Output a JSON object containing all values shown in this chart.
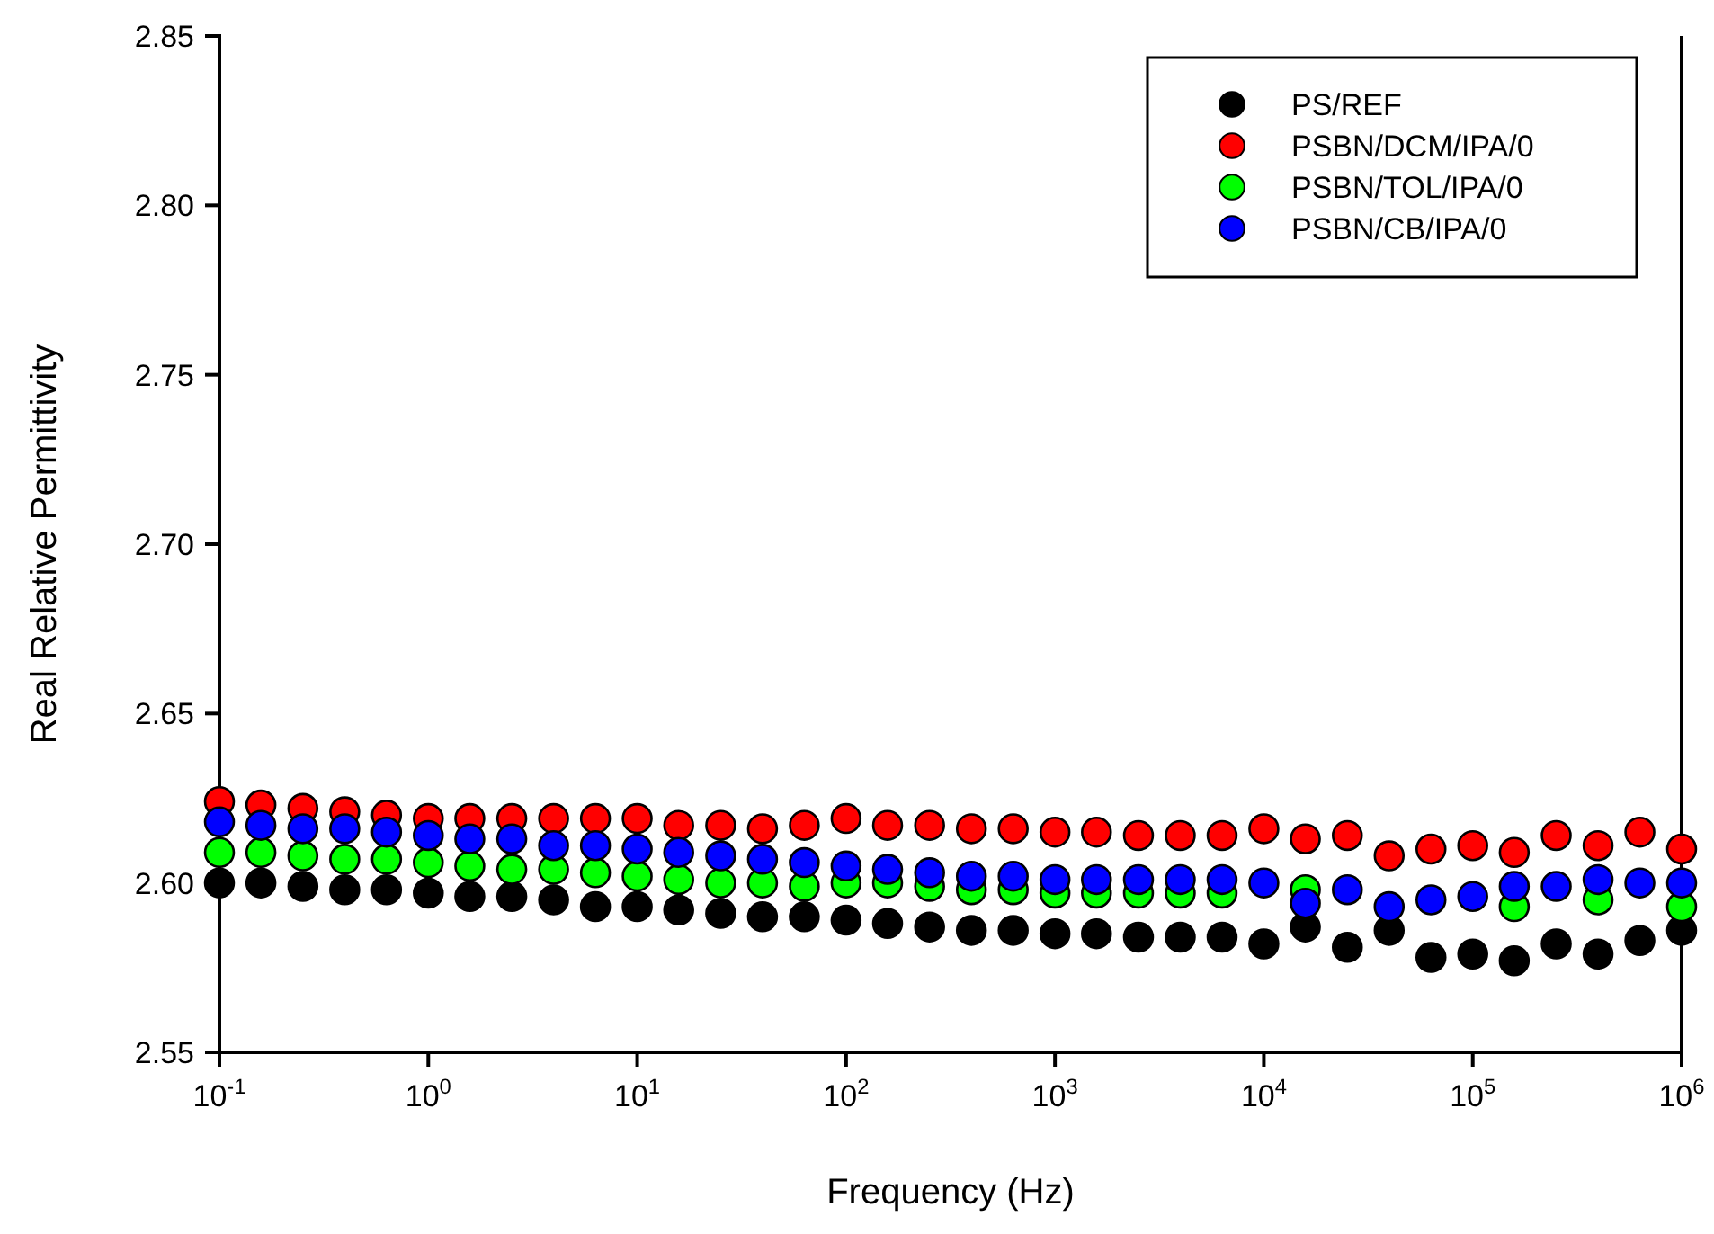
{
  "chart_data": {
    "type": "scatter",
    "xlabel": "Frequency (Hz)",
    "ylabel": "Real Relative Permittivity",
    "log": "x",
    "grid": false,
    "legend": "top right",
    "marker": "circle",
    "x": [
      0.1,
      0.158,
      0.251,
      0.398,
      0.631,
      1,
      1.58,
      2.51,
      3.98,
      6.31,
      10,
      15.8,
      25.1,
      39.8,
      63.1,
      100,
      158,
      251,
      398,
      631,
      1000,
      1580,
      2510,
      3980,
      6310,
      10000,
      15800,
      25100,
      39800,
      63100,
      100000,
      158000,
      251000,
      398000,
      631000,
      1000000
    ],
    "xlim": [
      0.1,
      1000000
    ],
    "xticks": [
      {
        "value": 0.1,
        "label": "10$^{-1}$"
      },
      {
        "value": 1,
        "label": "10$^{0}$"
      },
      {
        "value": 10,
        "label": "10$^{1}$"
      },
      {
        "value": 100,
        "label": "10$^{2}$"
      },
      {
        "value": 1000,
        "label": "10$^{3}$"
      },
      {
        "value": 10000,
        "label": "10$^{4}$"
      },
      {
        "value": 100000,
        "label": "10$^{5}$"
      },
      {
        "value": 1000000,
        "label": "10$^{6}$"
      }
    ],
    "ylim": [
      2.55,
      2.85
    ],
    "yticks": [
      {
        "value": 2.55,
        "label": "2.55"
      },
      {
        "value": 2.6,
        "label": "2.60"
      },
      {
        "value": 2.65,
        "label": "2.65"
      },
      {
        "value": 2.7,
        "label": "2.70"
      },
      {
        "value": 2.75,
        "label": "2.75"
      },
      {
        "value": 2.8,
        "label": "2.80"
      },
      {
        "value": 2.85,
        "label": "2.85"
      }
    ],
    "series": [
      {
        "name": "PS/REF",
        "color": "#000000",
        "values": [
          2.6,
          2.6,
          2.599,
          2.598,
          2.598,
          2.597,
          2.596,
          2.596,
          2.595,
          2.593,
          2.593,
          2.592,
          2.591,
          2.59,
          2.59,
          2.589,
          2.588,
          2.587,
          2.586,
          2.586,
          2.585,
          2.585,
          2.584,
          2.584,
          2.584,
          2.582,
          2.587,
          2.581,
          2.586,
          2.578,
          2.579,
          2.577,
          2.582,
          2.579,
          2.583,
          2.586
        ]
      },
      {
        "name": "PSBN/DCM/IPA/0",
        "color": "#ff0000",
        "values": [
          2.624,
          2.623,
          2.622,
          2.621,
          2.62,
          2.619,
          2.619,
          2.619,
          2.619,
          2.619,
          2.619,
          2.617,
          2.617,
          2.616,
          2.617,
          2.619,
          2.617,
          2.617,
          2.616,
          2.616,
          2.615,
          2.615,
          2.614,
          2.614,
          2.614,
          2.616,
          2.613,
          2.614,
          2.608,
          2.61,
          2.611,
          2.609,
          2.614,
          2.611,
          2.615,
          2.61
        ]
      },
      {
        "name": "PSBN/TOL/IPA/0",
        "color": "#00ff00",
        "values": [
          2.609,
          2.609,
          2.608,
          2.607,
          2.607,
          2.606,
          2.605,
          2.604,
          2.604,
          2.603,
          2.602,
          2.601,
          2.6,
          2.6,
          2.599,
          2.6,
          2.6,
          2.599,
          2.598,
          2.598,
          2.597,
          2.597,
          2.597,
          2.597,
          2.597,
          null,
          2.598,
          null,
          null,
          null,
          null,
          2.593,
          null,
          2.595,
          null,
          2.593
        ]
      },
      {
        "name": "PSBN/CB/IPA/0",
        "color": "#0000ff",
        "values": [
          2.618,
          2.617,
          2.616,
          2.616,
          2.615,
          2.614,
          2.613,
          2.613,
          2.611,
          2.611,
          2.61,
          2.609,
          2.608,
          2.607,
          2.606,
          2.605,
          2.604,
          2.603,
          2.602,
          2.602,
          2.601,
          2.601,
          2.601,
          2.601,
          2.601,
          2.6,
          2.594,
          2.598,
          2.593,
          2.595,
          2.596,
          2.599,
          2.599,
          2.601,
          2.6,
          2.6
        ]
      }
    ]
  }
}
